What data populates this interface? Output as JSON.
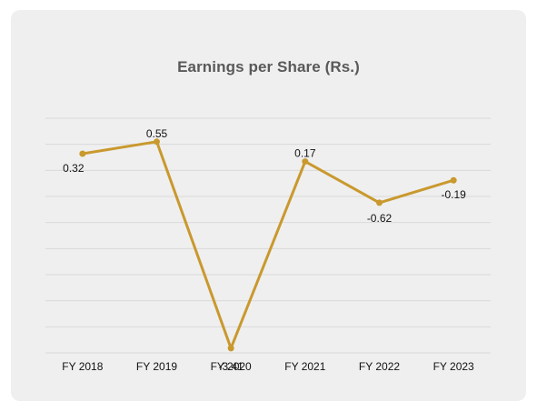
{
  "chart_data": {
    "type": "line",
    "title": "Earnings per Share (Rs.)",
    "categories": [
      "FY 2018",
      "FY 2019",
      "FY 2020",
      "FY 2021",
      "FY 2022",
      "FY 2023"
    ],
    "series": [
      {
        "values": [
          0.32,
          0.55,
          -3.41,
          0.17,
          -0.62,
          -0.19
        ],
        "color": "#c9992e"
      }
    ],
    "data_labels": [
      "0.32",
      "0.55",
      "-3.41",
      "0.17",
      "-0.62",
      "-0.19"
    ],
    "ylim": [
      -3.5,
      1.0
    ],
    "grid": true,
    "legend": "none",
    "colors": {
      "card": "#efefef",
      "grid": "#d9d9d9",
      "line": "#c9992e",
      "title": "#595959"
    }
  }
}
